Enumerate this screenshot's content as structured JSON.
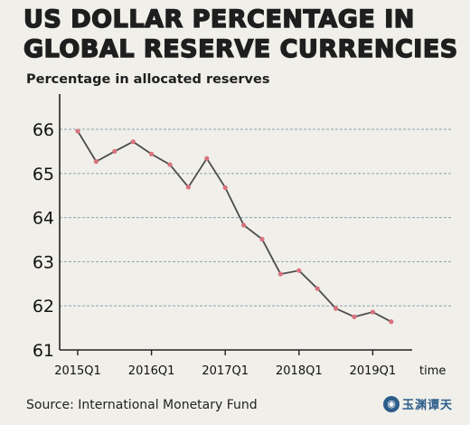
{
  "title_line1": "US DOLLAR PERCENTAGE IN",
  "title_line2": "GLOBAL RESERVE CURRENCIES",
  "source": "Source: International Monetary Fund",
  "logo_text": "玉渊谭天",
  "chart_data": {
    "type": "line",
    "title": "US DOLLAR PERCENTAGE IN GLOBAL RESERVE CURRENCIES",
    "ylabel": "Percentage in allocated reserves",
    "xlabel": "time",
    "ylim": [
      61,
      66.8
    ],
    "yticks": [
      61,
      62,
      63,
      64,
      65,
      66
    ],
    "xticks": [
      "2015Q1",
      "2016Q1",
      "2017Q1",
      "2018Q1",
      "2019Q1"
    ],
    "grid": "horizontal dashed",
    "x": [
      "2015Q1",
      "2015Q2",
      "2015Q3",
      "2015Q4",
      "2016Q1",
      "2016Q2",
      "2016Q3",
      "2016Q4",
      "2017Q1",
      "2017Q2",
      "2017Q3",
      "2017Q4",
      "2018Q1",
      "2018Q2",
      "2018Q3",
      "2018Q4",
      "2019Q1",
      "2019Q2"
    ],
    "series": [
      {
        "values": [
          65.96,
          65.27,
          65.5,
          65.72,
          65.44,
          65.2,
          64.69,
          65.34,
          64.68,
          63.83,
          63.51,
          62.72,
          62.8,
          62.39,
          61.94,
          61.75,
          61.86,
          61.64
        ],
        "color": "#4d4d4d",
        "marker_color": "#d9727e"
      }
    ],
    "colors": {
      "line": "#4d4d4d",
      "marker": "#d9727e",
      "grid": "#8aa6aa",
      "axis": "#222222"
    }
  }
}
